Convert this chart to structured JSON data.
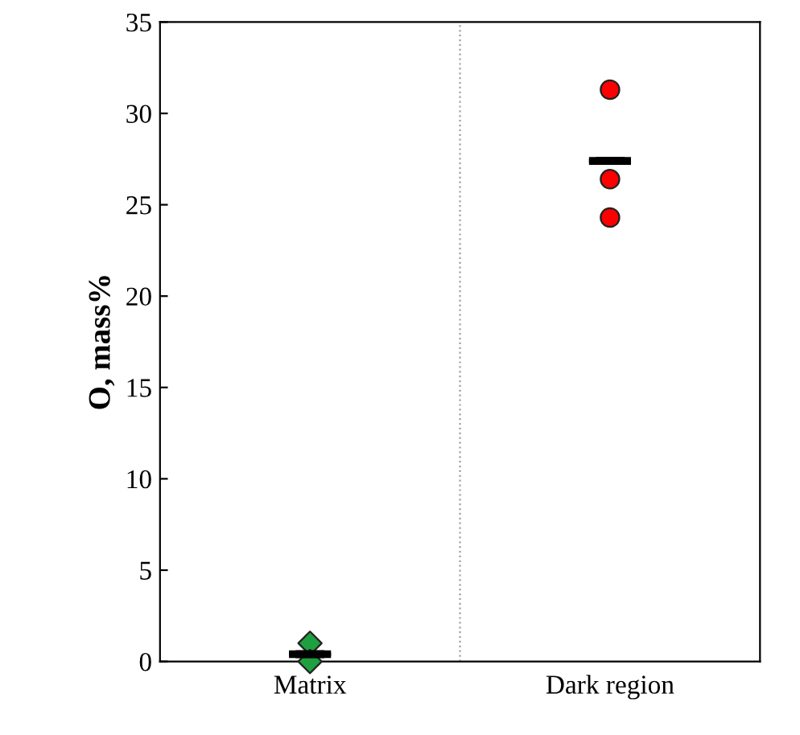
{
  "chart_data": {
    "type": "scatter",
    "ylabel": "O, mass%",
    "categories": [
      "Matrix",
      "Dark region"
    ],
    "ylim": [
      0,
      35
    ],
    "yticks": [
      0,
      5,
      10,
      15,
      20,
      25,
      30,
      35
    ],
    "grid": false,
    "legend": false,
    "series": [
      {
        "marker": "diamond",
        "color": "#1fa040",
        "x": [
          "Matrix",
          "Matrix"
        ],
        "values": [
          1.0,
          0.0
        ]
      },
      {
        "marker": "circle",
        "color": "#ff0000",
        "x": [
          "Dark region",
          "Dark region",
          "Dark region"
        ],
        "values": [
          31.3,
          26.4,
          24.3
        ]
      },
      {
        "type": "box",
        "color": "#000000",
        "boxes": [
          {
            "low": 0.4,
            "q1": 0.4,
            "median": 0.4,
            "q3": 0.4,
            "high": 0.4
          },
          {
            "low": 27.4,
            "q1": 27.4,
            "median": 27.4,
            "q3": 27.4,
            "high": 27.4
          }
        ]
      }
    ]
  }
}
